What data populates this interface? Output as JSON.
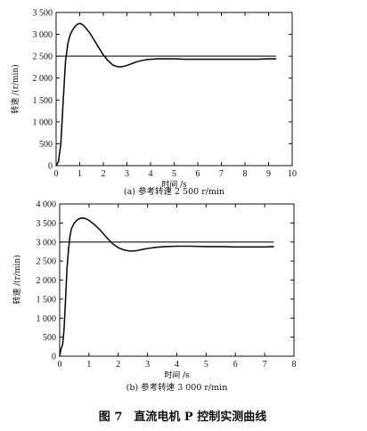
{
  "figure_caption": "图 7　直流电机 P 控制实测曲线",
  "chart_data": [
    {
      "type": "line",
      "caption": "(a)  参考转速  2 500 r/min",
      "xlabel": "时间 /s",
      "ylabel": "转速 /(r/min)",
      "xlim": [
        0,
        10
      ],
      "ylim": [
        0,
        3500
      ],
      "x_ticks": [
        0,
        1,
        2,
        3,
        4,
        5,
        6,
        7,
        8,
        9,
        10
      ],
      "x_tick_labels": [
        "0",
        "1",
        "2",
        "3",
        "4",
        "5",
        "6",
        "7",
        "8",
        "9",
        "10"
      ],
      "y_ticks": [
        0,
        500,
        1000,
        1500,
        2000,
        2500,
        3000,
        3500
      ],
      "y_tick_labels": [
        "0",
        "500",
        "1 000",
        "1 500",
        "2 000",
        "2 500",
        "3 000",
        "3 500"
      ],
      "grid": false,
      "series": [
        {
          "role": "response",
          "x": [
            0,
            0.1,
            0.2,
            0.3,
            0.4,
            0.5,
            0.6,
            0.7,
            0.8,
            0.9,
            1.0,
            1.1,
            1.2,
            1.4,
            1.6,
            1.8,
            2.0,
            2.2,
            2.4,
            2.6,
            2.8,
            3.0,
            3.2,
            3.4,
            3.6,
            3.8,
            4.0,
            4.3,
            4.6,
            5.0,
            5.5,
            6.0,
            6.5,
            7.0,
            7.5,
            8.0,
            8.5,
            9.0,
            9.3
          ],
          "y": [
            0,
            100,
            500,
            1500,
            2400,
            2800,
            3000,
            3100,
            3180,
            3230,
            3250,
            3230,
            3180,
            3050,
            2880,
            2700,
            2530,
            2400,
            2300,
            2260,
            2260,
            2290,
            2330,
            2370,
            2400,
            2420,
            2430,
            2440,
            2440,
            2440,
            2430,
            2430,
            2430,
            2430,
            2430,
            2430,
            2430,
            2440,
            2440
          ]
        },
        {
          "role": "reference",
          "x": [
            0,
            9.3
          ],
          "y": [
            2500,
            2500
          ]
        }
      ]
    },
    {
      "type": "line",
      "caption": "(b)  参考转速  3 000 r/min",
      "xlabel": "时间 /s",
      "ylabel": "转速 /(r/min)",
      "xlim": [
        0,
        8
      ],
      "ylim": [
        0,
        4000
      ],
      "x_ticks": [
        0,
        1,
        2,
        3,
        4,
        5,
        6,
        7,
        8
      ],
      "x_tick_labels": [
        "0",
        "1",
        "2",
        "3",
        "4",
        "5",
        "6",
        "7",
        "8"
      ],
      "y_ticks": [
        0,
        500,
        1000,
        1500,
        2000,
        2500,
        3000,
        3500,
        4000
      ],
      "y_tick_labels": [
        "0",
        "500",
        "1 000",
        "1 500",
        "2 000",
        "2 500",
        "3 000",
        "3 500",
        "4 000"
      ],
      "grid": false,
      "series": [
        {
          "role": "response",
          "x": [
            0,
            0.05,
            0.1,
            0.15,
            0.2,
            0.25,
            0.3,
            0.35,
            0.4,
            0.5,
            0.6,
            0.7,
            0.8,
            0.9,
            1.0,
            1.2,
            1.4,
            1.6,
            1.8,
            2.0,
            2.2,
            2.4,
            2.6,
            2.8,
            3.0,
            3.3,
            3.6,
            4.0,
            4.5,
            5.0,
            5.5,
            6.0,
            6.5,
            7.0,
            7.3
          ],
          "y": [
            0,
            200,
            300,
            700,
            1500,
            2300,
            2800,
            3150,
            3350,
            3500,
            3580,
            3620,
            3630,
            3610,
            3570,
            3450,
            3300,
            3120,
            2960,
            2850,
            2790,
            2760,
            2770,
            2800,
            2830,
            2860,
            2880,
            2890,
            2890,
            2880,
            2880,
            2870,
            2870,
            2870,
            2880
          ]
        },
        {
          "role": "reference",
          "x": [
            0,
            7.3
          ],
          "y": [
            3000,
            3000
          ]
        }
      ]
    }
  ]
}
